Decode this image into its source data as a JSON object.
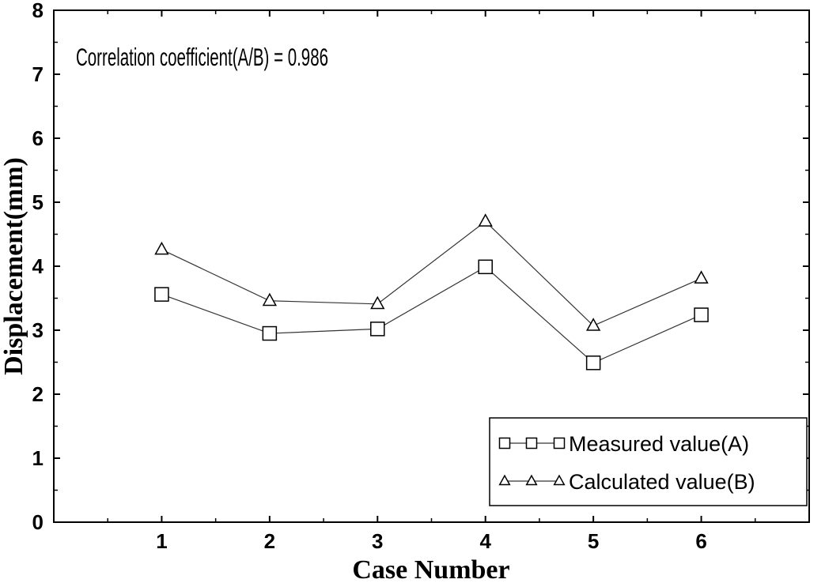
{
  "chart_data": {
    "type": "line",
    "title": "",
    "annotation": "Correlation coefficient(A/B) = 0.986",
    "xlabel": "Case Number",
    "ylabel": "Displacement(mm)",
    "categories": [
      "1",
      "2",
      "3",
      "4",
      "5",
      "6"
    ],
    "xlim": [
      0,
      7
    ],
    "ylim": [
      0,
      8
    ],
    "yticks": [
      "0",
      "1",
      "2",
      "3",
      "4",
      "5",
      "6",
      "7",
      "8"
    ],
    "grid": false,
    "legend_position": "bottom-right",
    "series": [
      {
        "name": "Measured value(A)",
        "marker": "square",
        "values": [
          3.56,
          2.95,
          3.02,
          3.99,
          2.49,
          3.24
        ]
      },
      {
        "name": "Calculated value(B)",
        "marker": "triangle",
        "values": [
          4.26,
          3.46,
          3.41,
          4.7,
          3.07,
          3.81
        ]
      }
    ],
    "colors": {
      "axis": "#000000",
      "series_line": "#333333",
      "marker": "#000000"
    }
  }
}
